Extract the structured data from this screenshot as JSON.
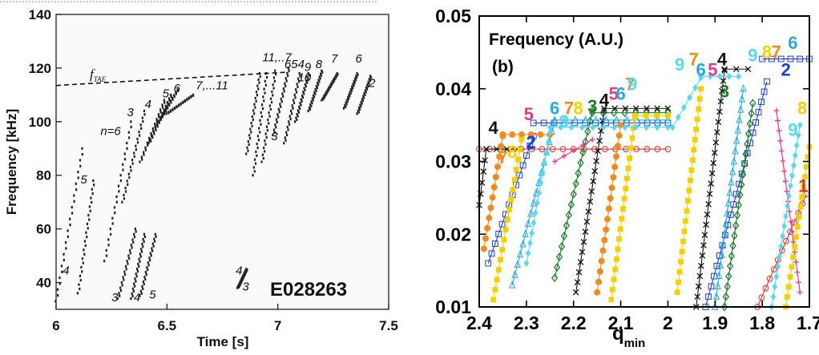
{
  "chart_data": [
    {
      "type": "scatter",
      "xlabel": "Time [s]",
      "ylabel": "Frequency [kHz]",
      "xlim": [
        6.0,
        7.5
      ],
      "ylim": [
        30,
        140
      ],
      "x_ticks": [
        "6",
        "6.5",
        "7",
        "7.5"
      ],
      "y_ticks": [
        "40",
        "60",
        "80",
        "100",
        "120",
        "140"
      ],
      "shot_label": "E028263",
      "tae_label": "f",
      "tae_sub": "TAE",
      "tae_line": [
        [
          6.0,
          113.5
        ],
        [
          7.05,
          118.5
        ]
      ],
      "grid": false,
      "annotations": [
        {
          "text": "11,..7",
          "x": 6.93,
          "y": 122.5
        },
        {
          "text": "7,...11",
          "x": 6.63,
          "y": 112
        },
        {
          "text": "654",
          "x": 7.03,
          "y": 120
        },
        {
          "text": "9",
          "x": 7.12,
          "y": 119
        },
        {
          "text": "8",
          "x": 7.17,
          "y": 120
        },
        {
          "text": "7",
          "x": 7.24,
          "y": 122
        },
        {
          "text": "6",
          "x": 7.35,
          "y": 122
        },
        {
          "text": "2",
          "x": 7.41,
          "y": 113
        },
        {
          "text": "10",
          "x": 7.09,
          "y": 115
        },
        {
          "text": "5",
          "x": 6.48,
          "y": 109
        },
        {
          "text": "6",
          "x": 6.53,
          "y": 111
        },
        {
          "text": "4",
          "x": 6.4,
          "y": 105
        },
        {
          "text": "3",
          "x": 6.32,
          "y": 102
        },
        {
          "text": "n=6",
          "x": 6.2,
          "y": 95
        },
        {
          "text": "5",
          "x": 6.11,
          "y": 77
        },
        {
          "text": "4",
          "x": 6.03,
          "y": 43
        },
        {
          "text": "3",
          "x": 6.25,
          "y": 33
        },
        {
          "text": "4",
          "x": 6.35,
          "y": 33
        },
        {
          "text": "5",
          "x": 6.42,
          "y": 34
        },
        {
          "text": "3",
          "x": 6.97,
          "y": 93
        },
        {
          "text": "4",
          "x": 6.81,
          "y": 43
        },
        {
          "text": "3",
          "x": 6.84,
          "y": 37
        }
      ],
      "traces": [
        {
          "x0": 6.0,
          "y0": 33,
          "x1": 6.12,
          "y1": 90
        },
        {
          "x0": 6.1,
          "y0": 36,
          "x1": 6.17,
          "y1": 78
        },
        {
          "x0": 6.28,
          "y0": 34,
          "x1": 6.36,
          "y1": 60
        },
        {
          "x0": 6.34,
          "y0": 34,
          "x1": 6.4,
          "y1": 58
        },
        {
          "x0": 6.38,
          "y0": 35,
          "x1": 6.45,
          "y1": 58
        },
        {
          "x0": 6.22,
          "y0": 48,
          "x1": 6.34,
          "y1": 100
        },
        {
          "x0": 6.3,
          "y0": 70,
          "x1": 6.4,
          "y1": 104
        },
        {
          "x0": 6.38,
          "y0": 85,
          "x1": 6.49,
          "y1": 108
        },
        {
          "x0": 6.42,
          "y0": 92,
          "x1": 6.52,
          "y1": 110
        },
        {
          "x0": 6.45,
          "y0": 98,
          "x1": 6.55,
          "y1": 112
        },
        {
          "x0": 6.5,
          "y0": 103,
          "x1": 6.62,
          "y1": 110
        },
        {
          "x0": 6.82,
          "y0": 38,
          "x1": 6.86,
          "y1": 45
        },
        {
          "x0": 6.86,
          "y0": 88,
          "x1": 6.92,
          "y1": 118
        },
        {
          "x0": 6.89,
          "y0": 80,
          "x1": 6.95,
          "y1": 118
        },
        {
          "x0": 6.93,
          "y0": 85,
          "x1": 6.99,
          "y1": 119
        },
        {
          "x0": 6.98,
          "y0": 95,
          "x1": 7.05,
          "y1": 120
        },
        {
          "x0": 7.03,
          "y0": 92,
          "x1": 7.1,
          "y1": 118
        },
        {
          "x0": 7.08,
          "y0": 100,
          "x1": 7.14,
          "y1": 118
        },
        {
          "x0": 7.14,
          "y0": 104,
          "x1": 7.2,
          "y1": 119
        },
        {
          "x0": 7.2,
          "y0": 108,
          "x1": 7.27,
          "y1": 118
        },
        {
          "x0": 7.3,
          "y0": 105,
          "x1": 7.36,
          "y1": 118
        },
        {
          "x0": 7.36,
          "y0": 103,
          "x1": 7.42,
          "y1": 117
        }
      ]
    },
    {
      "type": "line",
      "title": "Frequency (A.U.)",
      "panel_label": "(b)",
      "xlabel": "q",
      "xlabel_sub": "min",
      "ylabel": "",
      "xlim": [
        2.4,
        1.7
      ],
      "ylim": [
        0.01,
        0.05
      ],
      "x_ticks": [
        "2.4",
        "2.3",
        "2.2",
        "2.1",
        "2",
        "1.9",
        "1.8",
        "1.7"
      ],
      "y_ticks": [
        "0.01",
        "0.02",
        "0.03",
        "0.04",
        "0.05"
      ],
      "grid": false,
      "colors": {
        "1": "#e0302a",
        "2": "#1f3fd0",
        "3": "#1a7a2a",
        "4": "#111111",
        "5": "#e8388a",
        "6": "#25a8e0",
        "7": "#f28a1e",
        "8": "#f5d000",
        "9": "#5ad8f0"
      },
      "series": [
        {
          "name": "1",
          "marker": "circle-open",
          "segments": [
            {
              "q0": 2.4,
              "f0": 0.0317,
              "q1": 2.0,
              "f1": 0.0317
            },
            {
              "q0": 1.81,
              "f0": 0.01,
              "q1": 1.706,
              "f1": 0.0255
            }
          ]
        },
        {
          "name": "2",
          "marker": "square-open",
          "segments": [
            {
              "q0": 2.381,
              "f0": 0.016,
              "q1": 2.285,
              "f1": 0.0335
            },
            {
              "q0": 2.285,
              "f0": 0.0353,
              "q1": 2.0,
              "f1": 0.0353
            },
            {
              "q0": 1.92,
              "f0": 0.01,
              "q1": 1.79,
              "f1": 0.041
            },
            {
              "q0": 1.8,
              "f0": 0.0441,
              "q1": 1.7,
              "f1": 0.0441
            }
          ]
        },
        {
          "name": "3",
          "marker": "diamond-open",
          "segments": [
            {
              "q0": 2.24,
              "f0": 0.014,
              "q1": 2.16,
              "f1": 0.037
            },
            {
              "q0": 2.16,
              "f0": 0.0367,
              "q1": 2.0,
              "f1": 0.0367
            },
            {
              "q0": 1.88,
              "f0": 0.01,
              "q1": 1.82,
              "f1": 0.038
            }
          ]
        },
        {
          "name": "4",
          "marker": "x",
          "segments": [
            {
              "q0": 2.4,
              "f0": 0.024,
              "q1": 2.385,
              "f1": 0.0317
            },
            {
              "q0": 2.385,
              "f0": 0.0317,
              "q1": 2.32,
              "f1": 0.0317
            },
            {
              "q0": 2.195,
              "f0": 0.012,
              "q1": 2.135,
              "f1": 0.037
            },
            {
              "q0": 2.135,
              "f0": 0.0373,
              "q1": 2.0,
              "f1": 0.0373
            },
            {
              "q0": 1.94,
              "f0": 0.01,
              "q1": 1.88,
              "f1": 0.0425
            },
            {
              "q0": 1.88,
              "f0": 0.0427,
              "q1": 1.83,
              "f1": 0.0427
            }
          ]
        },
        {
          "name": "5",
          "marker": "plus",
          "segments": [
            {
              "q0": 2.24,
              "f0": 0.03,
              "q1": 2.16,
              "f1": 0.033
            },
            {
              "q0": 1.72,
              "f0": 0.012,
              "q1": 1.77,
              "f1": 0.037
            }
          ]
        },
        {
          "name": "6",
          "marker": "triangle-open",
          "segments": [
            {
              "q0": 2.33,
              "f0": 0.013,
              "q1": 2.24,
              "f1": 0.0355
            },
            {
              "q0": 2.24,
              "f0": 0.0357,
              "q1": 2.0,
              "f1": 0.0357
            },
            {
              "q0": 1.9,
              "f0": 0.01,
              "q1": 1.84,
              "f1": 0.04
            }
          ]
        },
        {
          "name": "7",
          "marker": "circle-filled",
          "segments": [
            {
              "q0": 2.39,
              "f0": 0.018,
              "q1": 2.35,
              "f1": 0.0335
            },
            {
              "q0": 2.35,
              "f0": 0.0337,
              "q1": 2.25,
              "f1": 0.0337
            },
            {
              "q0": 2.15,
              "f0": 0.012,
              "q1": 2.1,
              "f1": 0.035
            }
          ]
        },
        {
          "name": "8",
          "marker": "square-filled",
          "segments": [
            {
              "q0": 2.37,
              "f0": 0.011,
              "q1": 2.31,
              "f1": 0.033
            },
            {
              "q0": 2.12,
              "f0": 0.011,
              "q1": 2.07,
              "f1": 0.036
            },
            {
              "q0": 2.07,
              "f0": 0.0363,
              "q1": 2.0,
              "f1": 0.0363
            },
            {
              "q0": 1.98,
              "f0": 0.012,
              "q1": 1.93,
              "f1": 0.04
            },
            {
              "q0": 1.75,
              "f0": 0.01,
              "q1": 1.7,
              "f1": 0.032
            }
          ]
        },
        {
          "name": "9",
          "marker": "diamond-filled",
          "segments": [
            {
              "q0": 2.3,
              "f0": 0.016,
              "q1": 2.25,
              "f1": 0.034
            },
            {
              "q0": 2.25,
              "f0": 0.0347,
              "q1": 2.0,
              "f1": 0.0347
            },
            {
              "q0": 1.99,
              "f0": 0.0347,
              "q1": 1.93,
              "f1": 0.0415
            },
            {
              "q0": 1.93,
              "f0": 0.0417,
              "q1": 1.85,
              "f1": 0.0417
            },
            {
              "q0": 1.78,
              "f0": 0.01,
              "q1": 1.72,
              "f1": 0.035
            }
          ]
        }
      ],
      "labels": [
        {
          "text": "4",
          "series": "4",
          "q": 2.37,
          "f": 0.0338
        },
        {
          "text": "5",
          "series": "5",
          "q": 2.295,
          "f": 0.0357
        },
        {
          "text": "7",
          "series": "7",
          "q": 2.35,
          "f": 0.0297
        },
        {
          "text": "8",
          "series": "8",
          "q": 2.33,
          "f": 0.0305
        },
        {
          "text": "2",
          "series": "2",
          "q": 2.29,
          "f": 0.0318
        },
        {
          "text": "6",
          "series": "6",
          "q": 2.24,
          "f": 0.0365
        },
        {
          "text": "7",
          "series": "7",
          "q": 2.21,
          "f": 0.0365
        },
        {
          "text": "8",
          "series": "8",
          "q": 2.19,
          "f": 0.0365
        },
        {
          "text": "9",
          "series": "9",
          "q": 2.22,
          "f": 0.0347
        },
        {
          "text": "3",
          "series": "3",
          "q": 2.16,
          "f": 0.0368
        },
        {
          "text": "4",
          "series": "4",
          "q": 2.135,
          "f": 0.0376
        },
        {
          "text": "5",
          "series": "5",
          "q": 2.115,
          "f": 0.0385
        },
        {
          "text": "6",
          "series": "6",
          "q": 2.1,
          "f": 0.0385
        },
        {
          "text": "7",
          "series": "7",
          "q": 2.08,
          "f": 0.0398
        },
        {
          "text": "9",
          "series": "9",
          "q": 2.075,
          "f": 0.0398
        },
        {
          "text": "9",
          "series": "9",
          "q": 1.975,
          "f": 0.0425
        },
        {
          "text": "7",
          "series": "7",
          "q": 1.945,
          "f": 0.0432
        },
        {
          "text": "6",
          "series": "6",
          "q": 1.93,
          "f": 0.0418
        },
        {
          "text": "5",
          "series": "5",
          "q": 1.905,
          "f": 0.0418
        },
        {
          "text": "4",
          "series": "4",
          "q": 1.885,
          "f": 0.0432
        },
        {
          "text": "3",
          "series": "3",
          "q": 1.88,
          "f": 0.0388
        },
        {
          "text": "9",
          "series": "9",
          "q": 1.82,
          "f": 0.0438
        },
        {
          "text": "8",
          "series": "8",
          "q": 1.79,
          "f": 0.0442
        },
        {
          "text": "7",
          "series": "7",
          "q": 1.77,
          "f": 0.0442
        },
        {
          "text": "6",
          "series": "6",
          "q": 1.735,
          "f": 0.0455
        },
        {
          "text": "2",
          "series": "2",
          "q": 1.75,
          "f": 0.0418
        },
        {
          "text": "9",
          "series": "9",
          "q": 1.735,
          "f": 0.0335
        },
        {
          "text": "8",
          "series": "8",
          "q": 1.715,
          "f": 0.0365
        },
        {
          "text": "1",
          "series": "1",
          "q": 1.713,
          "f": 0.0258
        }
      ]
    }
  ]
}
